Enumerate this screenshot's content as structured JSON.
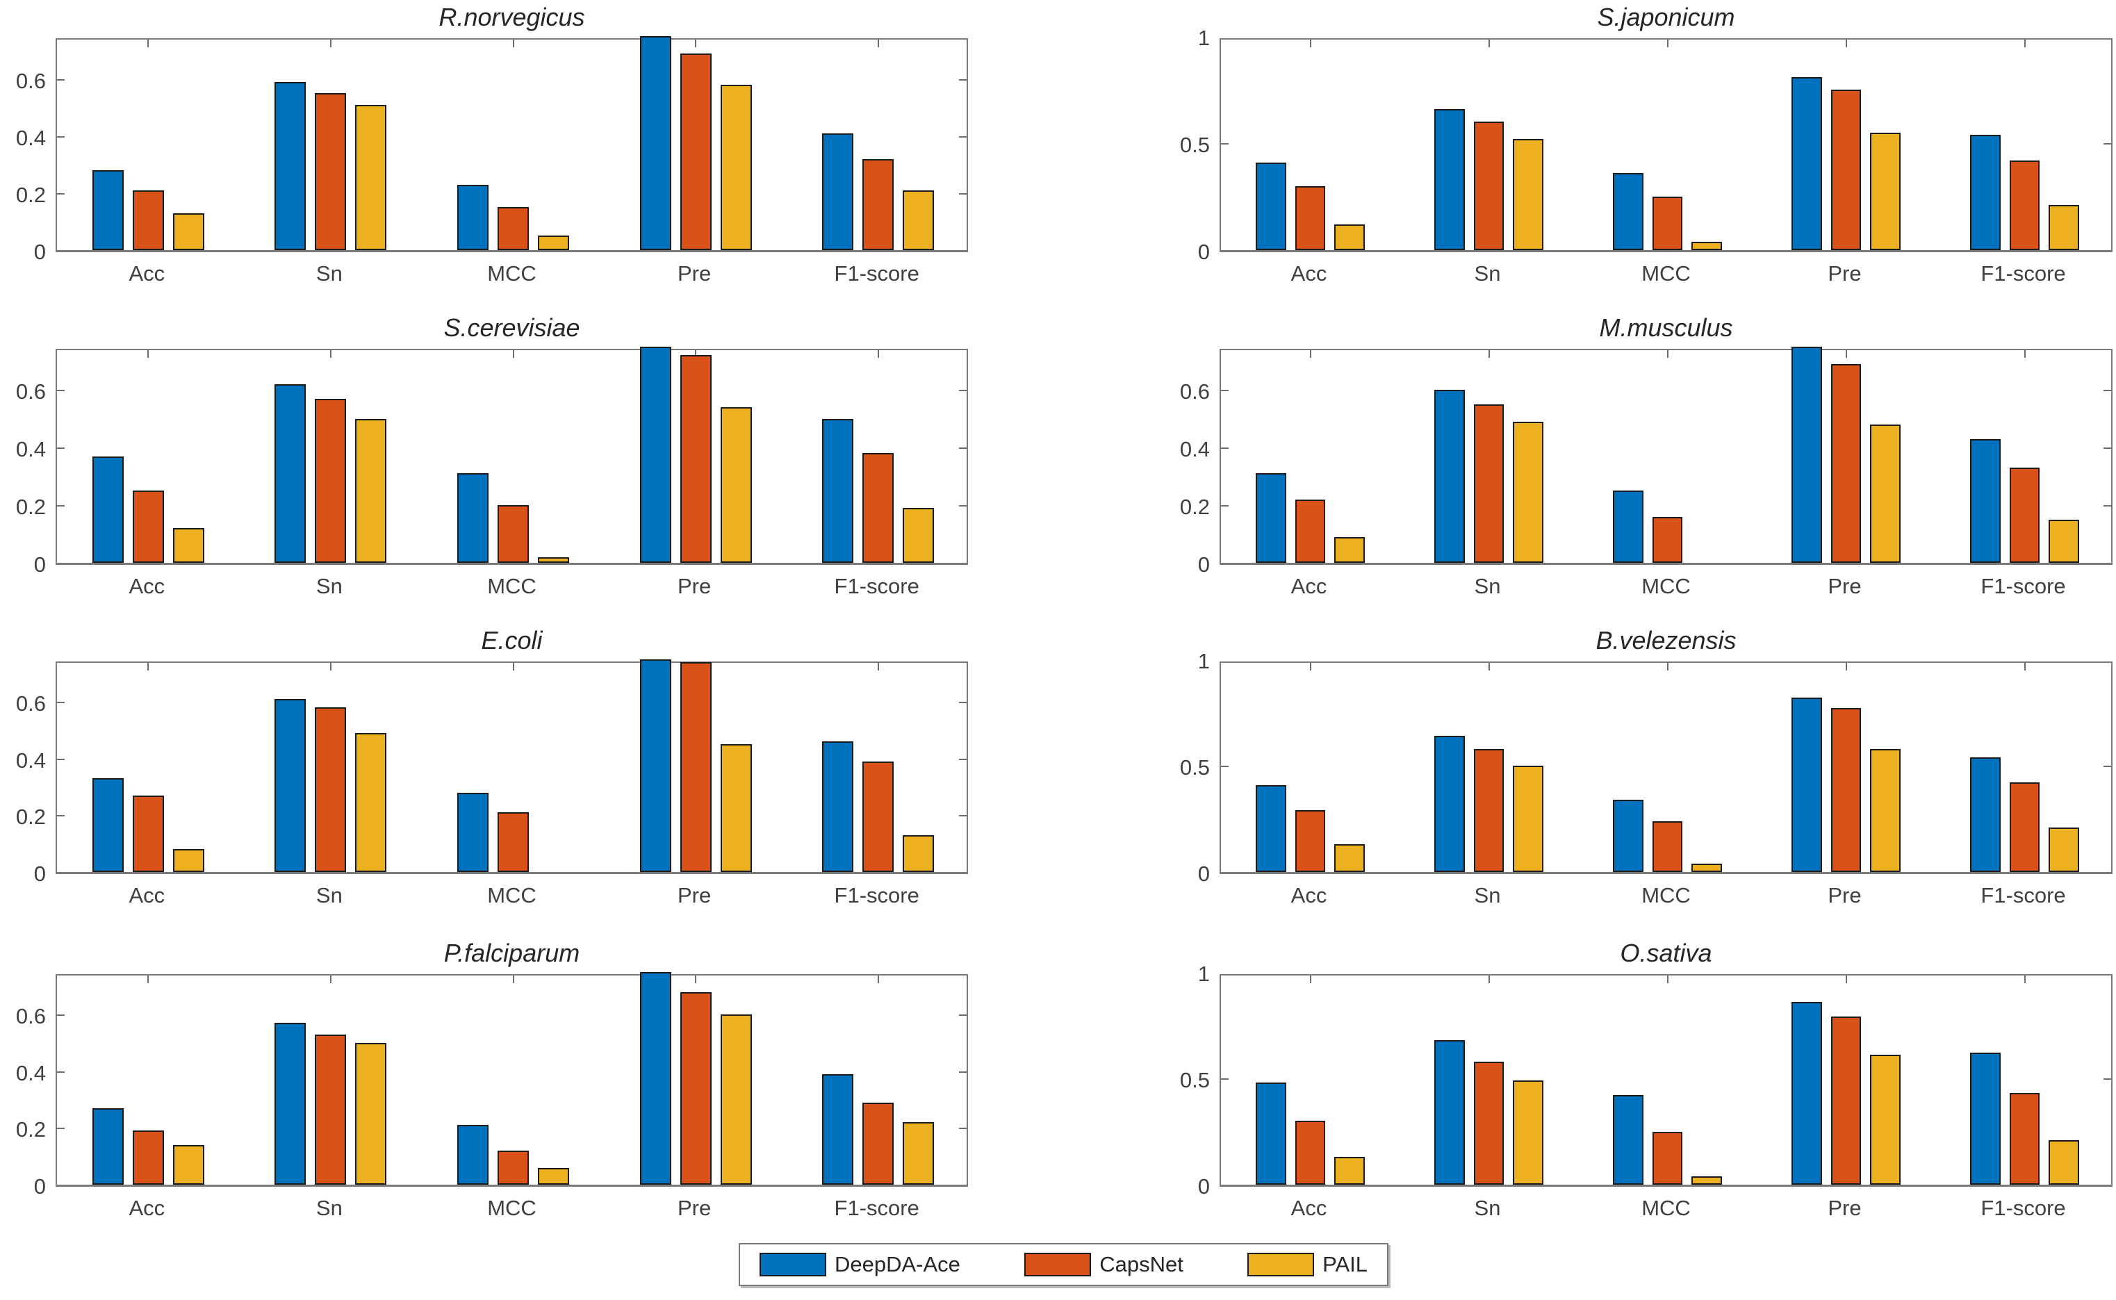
{
  "figure": {
    "background": "#ffffff",
    "metric_categories": [
      "Acc",
      "Sn",
      "MCC",
      "Pre",
      "F1-score"
    ],
    "series_names": [
      "DeepDA-Ace",
      "CapsNet",
      "PAIL"
    ],
    "series_colors": [
      "#0072BD",
      "#D95319",
      "#EDB120"
    ]
  },
  "legend": {
    "position": "bottom-center",
    "entries": [
      {
        "label": "DeepDA-Ace",
        "color": "#0072BD"
      },
      {
        "label": "CapsNet",
        "color": "#D95319"
      },
      {
        "label": "PAIL",
        "color": "#EDB120"
      }
    ]
  },
  "chart_data": [
    {
      "type": "bar",
      "title": "R.norvegicus",
      "categories": [
        "Acc",
        "Sn",
        "MCC",
        "Pre",
        "F1-score"
      ],
      "ylim": [
        0,
        0.75
      ],
      "yticks": [
        0,
        0.2,
        0.4,
        0.6
      ],
      "ytick_labels": [
        "0",
        "0.2",
        "0.4",
        "0.6"
      ],
      "grid": false,
      "series": [
        {
          "name": "DeepDA-Ace",
          "color": "#0072BD",
          "values": [
            0.28,
            0.59,
            0.23,
            0.75,
            0.41
          ]
        },
        {
          "name": "CapsNet",
          "color": "#D95319",
          "values": [
            0.21,
            0.55,
            0.15,
            0.69,
            0.32
          ]
        },
        {
          "name": "PAIL",
          "color": "#EDB120",
          "values": [
            0.13,
            0.51,
            0.05,
            0.58,
            0.21
          ]
        }
      ]
    },
    {
      "type": "bar",
      "title": "S.japonicum",
      "categories": [
        "Acc",
        "Sn",
        "MCC",
        "Pre",
        "F1-score"
      ],
      "ylim": [
        0,
        1
      ],
      "yticks": [
        0,
        0.5,
        1
      ],
      "ytick_labels": [
        "0",
        "0.5",
        "1"
      ],
      "grid": false,
      "series": [
        {
          "name": "DeepDA-Ace",
          "color": "#0072BD",
          "values": [
            0.41,
            0.66,
            0.36,
            0.81,
            0.54
          ]
        },
        {
          "name": "CapsNet",
          "color": "#D95319",
          "values": [
            0.3,
            0.6,
            0.25,
            0.75,
            0.42
          ]
        },
        {
          "name": "PAIL",
          "color": "#EDB120",
          "values": [
            0.12,
            0.52,
            0.04,
            0.55,
            0.21
          ]
        }
      ]
    },
    {
      "type": "bar",
      "title": "S.cerevisiae",
      "categories": [
        "Acc",
        "Sn",
        "MCC",
        "Pre",
        "F1-score"
      ],
      "ylim": [
        0,
        0.75
      ],
      "yticks": [
        0,
        0.2,
        0.4,
        0.6
      ],
      "ytick_labels": [
        "0",
        "0.2",
        "0.4",
        "0.6"
      ],
      "grid": false,
      "series": [
        {
          "name": "DeepDA-Ace",
          "color": "#0072BD",
          "values": [
            0.37,
            0.62,
            0.31,
            0.75,
            0.5
          ]
        },
        {
          "name": "CapsNet",
          "color": "#D95319",
          "values": [
            0.25,
            0.57,
            0.2,
            0.72,
            0.38
          ]
        },
        {
          "name": "PAIL",
          "color": "#EDB120",
          "values": [
            0.12,
            0.5,
            0.02,
            0.54,
            0.19
          ]
        }
      ]
    },
    {
      "type": "bar",
      "title": "M.musculus",
      "categories": [
        "Acc",
        "Sn",
        "MCC",
        "Pre",
        "F1-score"
      ],
      "ylim": [
        0,
        0.75
      ],
      "yticks": [
        0,
        0.2,
        0.4,
        0.6
      ],
      "ytick_labels": [
        "0",
        "0.2",
        "0.4",
        "0.6"
      ],
      "grid": false,
      "series": [
        {
          "name": "DeepDA-Ace",
          "color": "#0072BD",
          "values": [
            0.31,
            0.6,
            0.25,
            0.75,
            0.43
          ]
        },
        {
          "name": "CapsNet",
          "color": "#D95319",
          "values": [
            0.22,
            0.55,
            0.16,
            0.69,
            0.33
          ]
        },
        {
          "name": "PAIL",
          "color": "#EDB120",
          "values": [
            0.09,
            0.49,
            0.0,
            0.48,
            0.15
          ]
        }
      ]
    },
    {
      "type": "bar",
      "title": "E.coli",
      "categories": [
        "Acc",
        "Sn",
        "MCC",
        "Pre",
        "F1-score"
      ],
      "ylim": [
        0,
        0.75
      ],
      "yticks": [
        0,
        0.2,
        0.4,
        0.6
      ],
      "ytick_labels": [
        "0",
        "0.2",
        "0.4",
        "0.6"
      ],
      "grid": false,
      "series": [
        {
          "name": "DeepDA-Ace",
          "color": "#0072BD",
          "values": [
            0.33,
            0.61,
            0.28,
            0.75,
            0.46
          ]
        },
        {
          "name": "CapsNet",
          "color": "#D95319",
          "values": [
            0.27,
            0.58,
            0.21,
            0.74,
            0.39
          ]
        },
        {
          "name": "PAIL",
          "color": "#EDB120",
          "values": [
            0.08,
            0.49,
            0.0,
            0.45,
            0.13
          ]
        }
      ]
    },
    {
      "type": "bar",
      "title": "B.velezensis",
      "categories": [
        "Acc",
        "Sn",
        "MCC",
        "Pre",
        "F1-score"
      ],
      "ylim": [
        0,
        1
      ],
      "yticks": [
        0,
        0.5,
        1
      ],
      "ytick_labels": [
        "0",
        "0.5",
        "1"
      ],
      "grid": false,
      "series": [
        {
          "name": "DeepDA-Ace",
          "color": "#0072BD",
          "values": [
            0.41,
            0.64,
            0.34,
            0.82,
            0.54
          ]
        },
        {
          "name": "CapsNet",
          "color": "#D95319",
          "values": [
            0.29,
            0.58,
            0.24,
            0.77,
            0.42
          ]
        },
        {
          "name": "PAIL",
          "color": "#EDB120",
          "values": [
            0.13,
            0.5,
            0.04,
            0.58,
            0.21
          ]
        }
      ]
    },
    {
      "type": "bar",
      "title": "P.falciparum",
      "categories": [
        "Acc",
        "Sn",
        "MCC",
        "Pre",
        "F1-score"
      ],
      "ylim": [
        0,
        0.75
      ],
      "yticks": [
        0,
        0.2,
        0.4,
        0.6
      ],
      "ytick_labels": [
        "0",
        "0.2",
        "0.4",
        "0.6"
      ],
      "grid": false,
      "series": [
        {
          "name": "DeepDA-Ace",
          "color": "#0072BD",
          "values": [
            0.27,
            0.57,
            0.21,
            0.75,
            0.39
          ]
        },
        {
          "name": "CapsNet",
          "color": "#D95319",
          "values": [
            0.19,
            0.53,
            0.12,
            0.68,
            0.29
          ]
        },
        {
          "name": "PAIL",
          "color": "#EDB120",
          "values": [
            0.14,
            0.5,
            0.06,
            0.6,
            0.22
          ]
        }
      ]
    },
    {
      "type": "bar",
      "title": "O.sativa",
      "categories": [
        "Acc",
        "Sn",
        "MCC",
        "Pre",
        "F1-score"
      ],
      "ylim": [
        0,
        1
      ],
      "yticks": [
        0,
        0.5,
        1
      ],
      "ytick_labels": [
        "0",
        "0.5",
        "1"
      ],
      "grid": false,
      "series": [
        {
          "name": "DeepDA-Ace",
          "color": "#0072BD",
          "values": [
            0.48,
            0.68,
            0.42,
            0.86,
            0.62
          ]
        },
        {
          "name": "CapsNet",
          "color": "#D95319",
          "values": [
            0.3,
            0.58,
            0.25,
            0.79,
            0.43
          ]
        },
        {
          "name": "PAIL",
          "color": "#EDB120",
          "values": [
            0.13,
            0.49,
            0.04,
            0.61,
            0.21
          ]
        }
      ]
    }
  ]
}
